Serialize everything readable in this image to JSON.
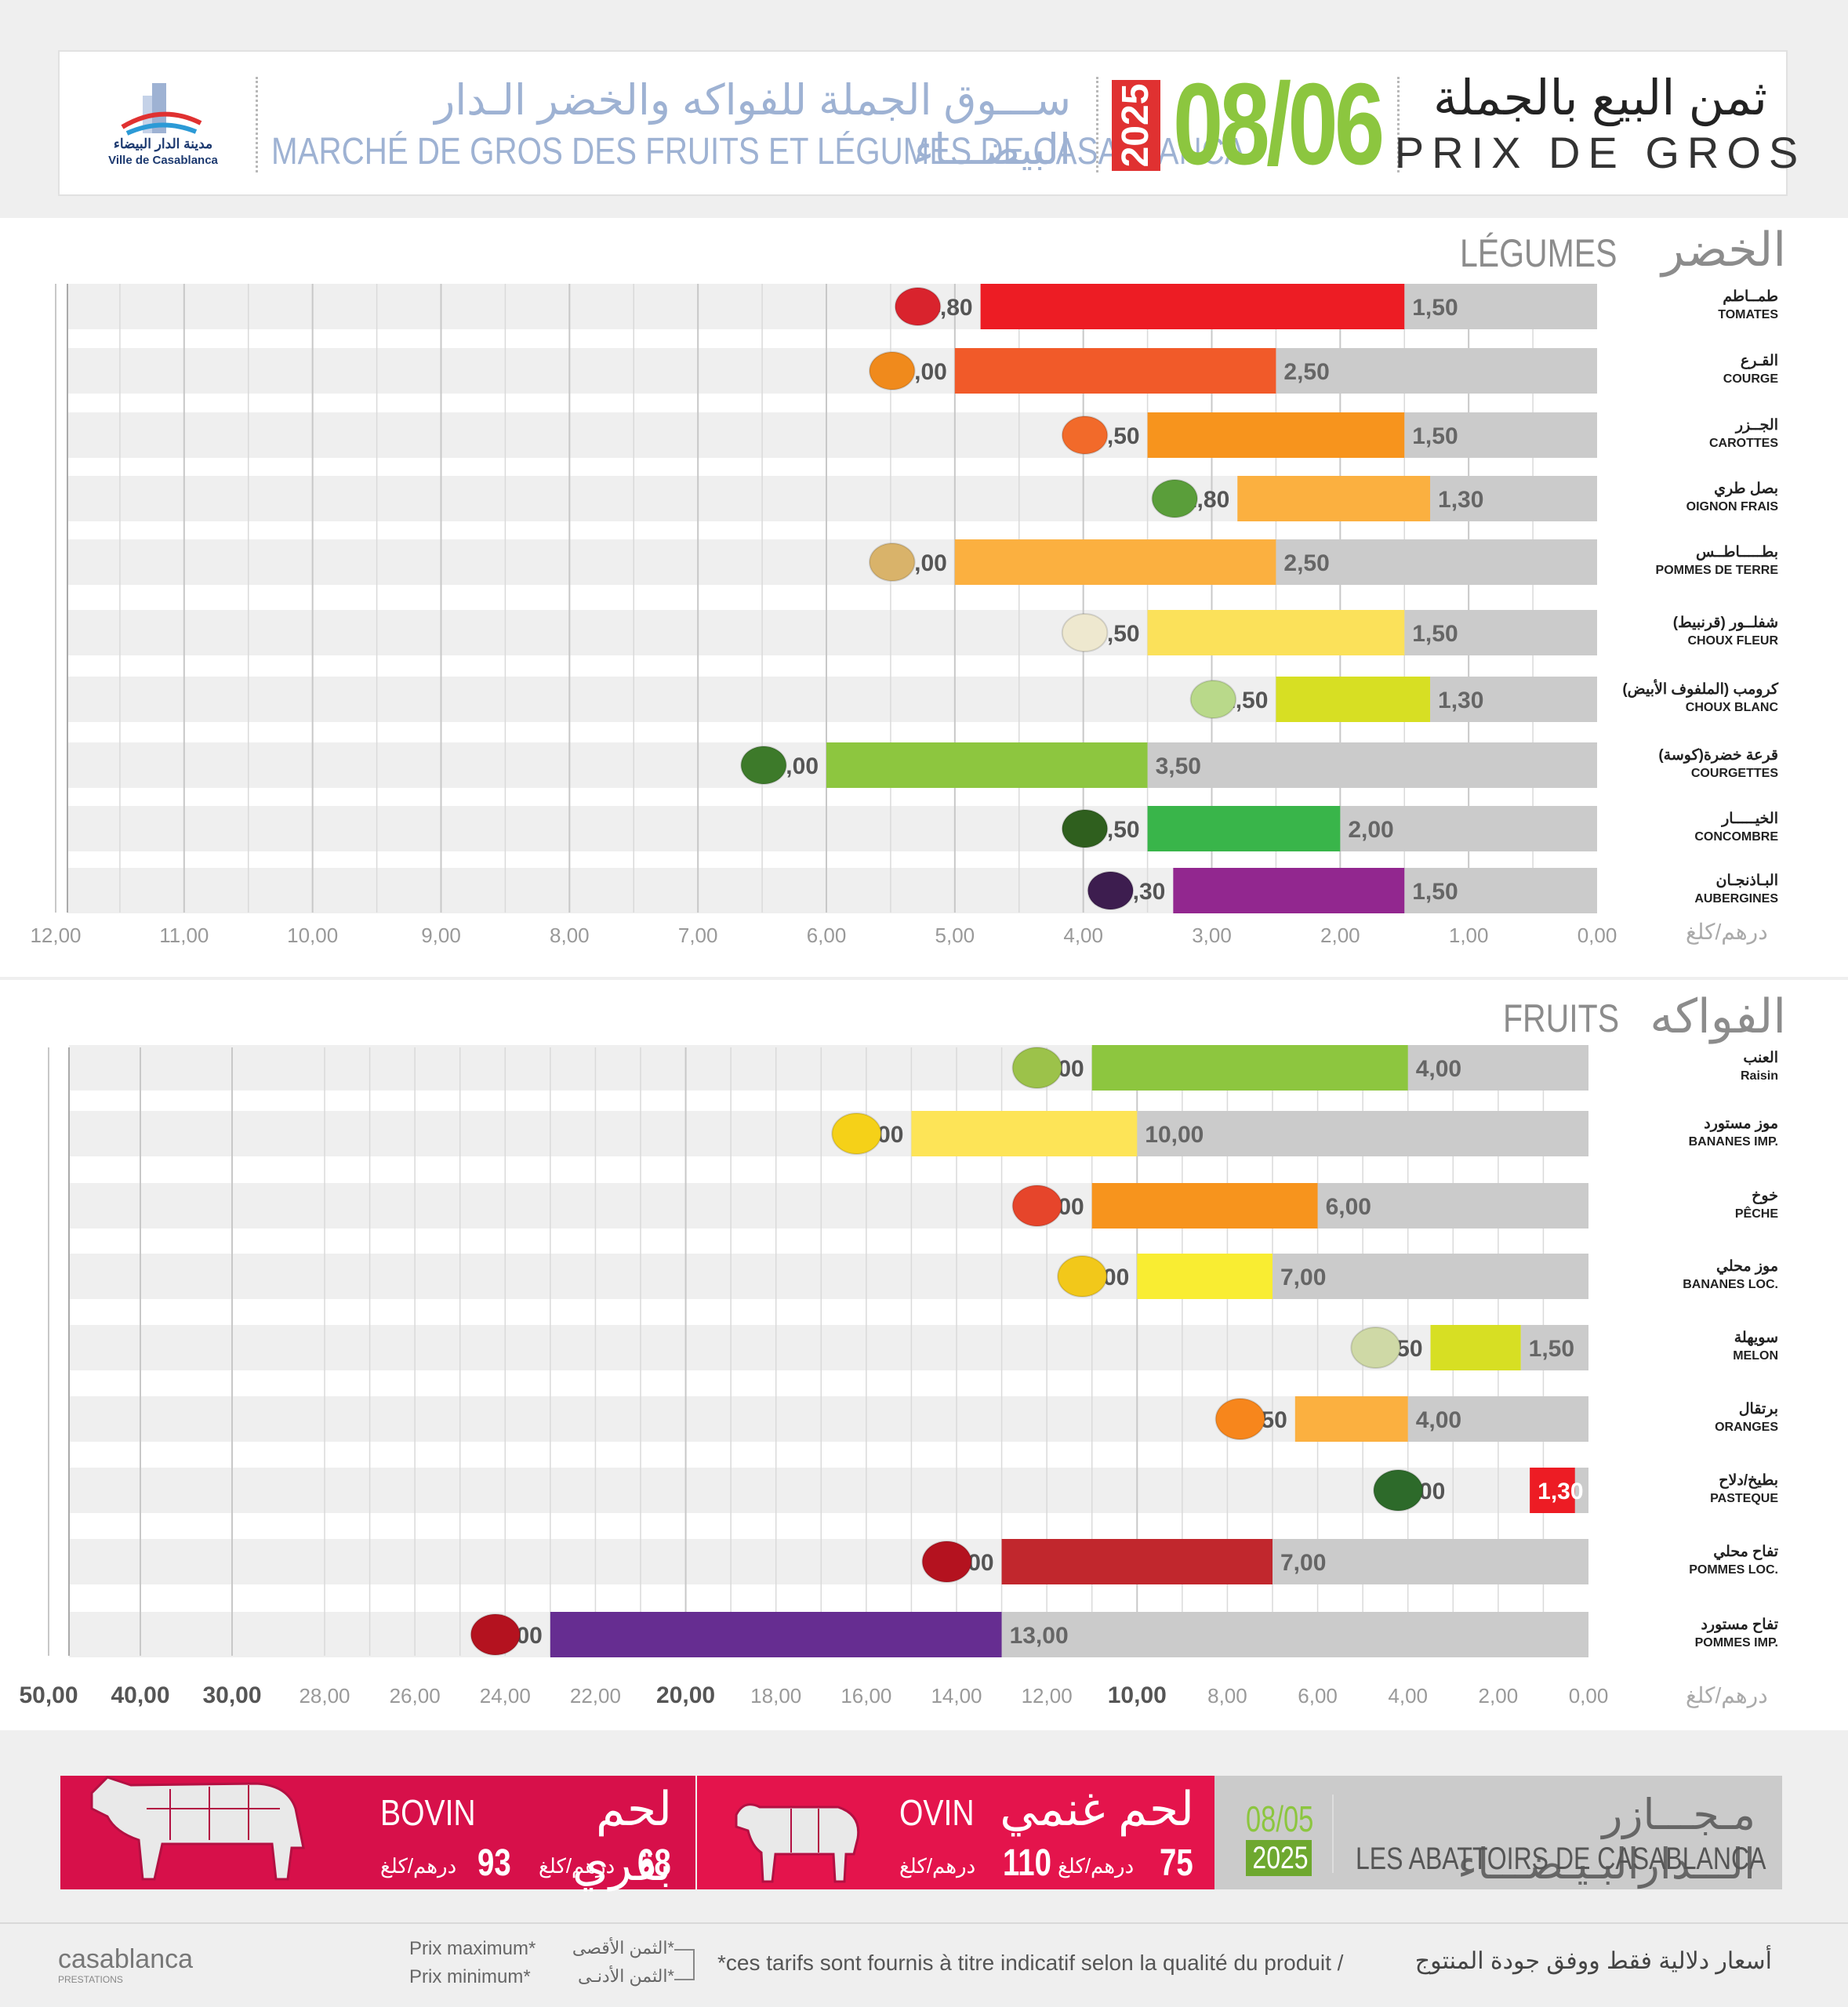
{
  "header": {
    "logo_city_ar": "مدينة الدار البيضاء",
    "logo_city_fr": "Ville de Casablanca",
    "market_ar": "ســـوق الجملة للفواكه والخضر الـدار البيضـــاء",
    "market_fr": "MARCHÉ DE GROS DES FRUITS ET LÉGUMES DE CASABLANCA",
    "year": "2025",
    "date": "08/06",
    "title_ar": "ثمن البيع بالجملة",
    "title_fr": "PRIX DE GROS"
  },
  "colors": {
    "accent_green": "#8cc63f",
    "accent_red": "#e03131",
    "meat_bovin": "#d7104a",
    "meat_ovin": "#e4144c"
  },
  "chart_data": [
    {
      "type": "bar",
      "title_ar": "الخضر",
      "title_fr": "LÉGUMES",
      "unit": "درهم/كلغ",
      "orientation": "horizontal-reversed",
      "xlim": [
        0,
        12
      ],
      "ticks": [
        "0,00",
        "1,00",
        "2,00",
        "3,00",
        "4,00",
        "5,00",
        "6,00",
        "7,00",
        "8,00",
        "9,00",
        "10,00",
        "11,00",
        "12,00"
      ],
      "items": [
        {
          "ar": "طمــاطم",
          "fr": "TOMATES",
          "min": 1.5,
          "max": 4.8,
          "min_label": "1,50",
          "max_label": "4,80",
          "color": "#ed1c24",
          "icon": "tomato-icon"
        },
        {
          "ar": "القـرع",
          "fr": "COURGE",
          "min": 2.5,
          "max": 5.0,
          "min_label": "2,50",
          "max_label": "5,00",
          "color": "#f15a29",
          "icon": "pumpkin-icon"
        },
        {
          "ar": "الجــزر",
          "fr": "CAROTTES",
          "min": 1.5,
          "max": 3.5,
          "min_label": "1,50",
          "max_label": "3,50",
          "color": "#f7941d",
          "icon": "carrot-icon"
        },
        {
          "ar": "بصل طري",
          "fr": "OIGNON FRAIS",
          "min": 1.3,
          "max": 2.8,
          "min_label": "1,30",
          "max_label": "2,80",
          "color": "#fbb040",
          "icon": "spring-onion-icon"
        },
        {
          "ar": "بطـــــاطــس",
          "fr": "POMMES DE TERRE",
          "min": 2.5,
          "max": 5.0,
          "min_label": "2,50",
          "max_label": "5,00",
          "color": "#fbb040",
          "icon": "potato-icon"
        },
        {
          "ar": "شفلــور (قرنبيط)",
          "fr": "CHOUX FLEUR",
          "min": 1.5,
          "max": 3.5,
          "min_label": "1,50",
          "max_label": "3,50",
          "color": "#fbe15a",
          "icon": "cauliflower-icon"
        },
        {
          "ar": "كرومب (الملفوف الأبيض)",
          "fr": "CHOUX BLANC",
          "min": 1.3,
          "max": 2.5,
          "min_label": "1,30",
          "max_label": "2,50",
          "color": "#d7df23",
          "icon": "cabbage-icon"
        },
        {
          "ar": "قرعة خضرة(كوسة)",
          "fr": "COURGETTES",
          "min": 3.5,
          "max": 6.0,
          "min_label": "3,50",
          "max_label": "6,00",
          "color": "#8dc63f",
          "icon": "zucchini-icon"
        },
        {
          "ar": "الخيـــــار",
          "fr": "CONCOMBRE",
          "min": 2.0,
          "max": 3.5,
          "min_label": "2,00",
          "max_label": "3,50",
          "color": "#39b54a",
          "icon": "cucumber-icon"
        },
        {
          "ar": "البـاذنجـان",
          "fr": "AUBERGINES",
          "min": 1.5,
          "max": 3.3,
          "min_label": "1,50",
          "max_label": "3,30",
          "color": "#92278f",
          "icon": "eggplant-icon"
        }
      ]
    },
    {
      "type": "bar",
      "title_ar": "الفواكه",
      "title_fr": "FRUITS",
      "unit": "درهم/كلغ",
      "orientation": "horizontal-reversed",
      "scale": "piecewise: 0-28 linear, 28-50 compressed",
      "ticks": [
        "0,00",
        "2,00",
        "4,00",
        "6,00",
        "8,00",
        "10,00",
        "12,00",
        "14,00",
        "16,00",
        "18,00",
        "20,00",
        "22,00",
        "24,00",
        "26,00",
        "28,00",
        "30,00",
        "40,00",
        "50,00"
      ],
      "items": [
        {
          "ar": "العنب",
          "fr": "Raisin",
          "min": 4.0,
          "max": 11.0,
          "min_label": "4,00",
          "max_label": "11,00",
          "color": "#8dc63f",
          "icon": "grapes-icon"
        },
        {
          "ar": "موز مستورد",
          "fr": "BANANES IMP.",
          "min": 10.0,
          "max": 15.0,
          "min_label": "10,00",
          "max_label": "15,00",
          "color": "#fde457",
          "icon": "banana-bunch-icon"
        },
        {
          "ar": "خوخ",
          "fr": "PÊCHE",
          "min": 6.0,
          "max": 11.0,
          "min_label": "6,00",
          "max_label": "11,00",
          "color": "#f7941d",
          "icon": "peach-icon"
        },
        {
          "ar": "موز محلي",
          "fr": "BANANES LOC.",
          "min": 7.0,
          "max": 10.0,
          "min_label": "7,00",
          "max_label": "10,00",
          "color": "#f9ed32",
          "icon": "banana-icon"
        },
        {
          "ar": "سويهلة",
          "fr": "MELON",
          "min": 1.5,
          "max": 3.5,
          "min_label": "1,50",
          "max_label": "3,50",
          "color": "#d7df23",
          "icon": "melon-icon"
        },
        {
          "ar": "برتقال",
          "fr": "ORANGES",
          "min": 4.0,
          "max": 6.5,
          "min_label": "4,00",
          "max_label": "6,50",
          "color": "#fbb040",
          "icon": "orange-icon"
        },
        {
          "ar": "بطيخ/دلاح",
          "fr": "PASTEQUE",
          "min": 1.3,
          "max": 3.0,
          "min_label": "1,30",
          "max_label": "3,00",
          "color": "#ed1c24",
          "min_bar": true,
          "icon": "watermelon-icon"
        },
        {
          "ar": "تفاح محلي",
          "fr": "POMMES LOC.",
          "min": 7.0,
          "max": 13.0,
          "min_label": "7,00",
          "max_label": "13,00",
          "color": "#c1272d",
          "icon": "apple-icon"
        },
        {
          "ar": "تفاح مستورد",
          "fr": "POMMES IMP.",
          "min": 13.0,
          "max": 23.0,
          "min_label": "13,00",
          "max_label": "23,00",
          "color": "#662d91",
          "icon": "apples-icon"
        }
      ]
    }
  ],
  "meat": {
    "bovin": {
      "ar": "لحم بقري",
      "fr": "BOVIN",
      "min": "68",
      "max": "93",
      "unit": "درهم/كلغ"
    },
    "ovin": {
      "ar": "لحم غنمي",
      "fr": "OVIN",
      "min": "75",
      "max": "110",
      "unit": "درهم/كلغ"
    },
    "abattoir": {
      "date": "08/05",
      "year": "2025",
      "ar": "مـجـــازر الـــدارالبـيـضـــاء",
      "fr": "LES ABATTOIRS DE CASABLANCA"
    }
  },
  "footer": {
    "logo": "casablanca",
    "logo_sub": "PRESTATIONS",
    "max_fr": "Prix maximum*",
    "min_fr": "Prix minimum*",
    "max_ar": "*الثمن الأقصى",
    "min_ar": "*الثمن الأدنـى",
    "note_fr": "*ces tarifs sont fournis à titre indicatif selon la qualité du produit /",
    "note_ar": "أسعار دلالية فقط ووفق جودة المنتوج"
  }
}
